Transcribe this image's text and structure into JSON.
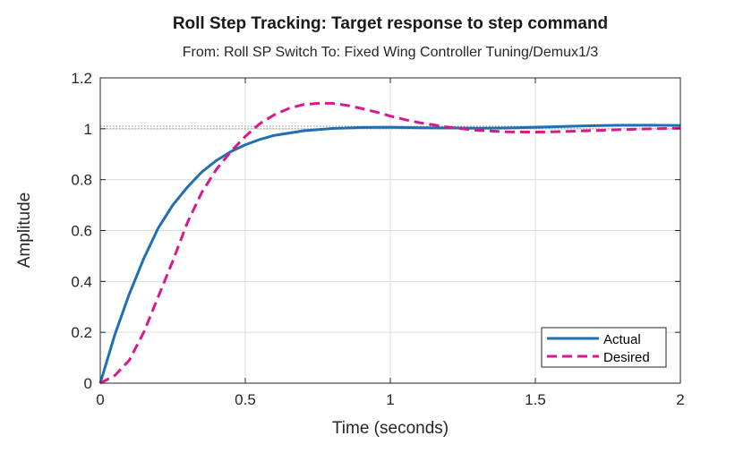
{
  "chart_data": {
    "type": "line",
    "title": "Roll Step Tracking: Target response to step command",
    "subtitle": "From: Roll SP Switch  To: Fixed Wing Controller Tuning/Demux1/3",
    "xlabel": "Time (seconds)",
    "ylabel": "Amplitude",
    "xlim": [
      0,
      2
    ],
    "ylim": [
      0,
      1.2
    ],
    "xticks": [
      0,
      0.5,
      1,
      1.5,
      2
    ],
    "xtick_labels": [
      "0",
      "0.5",
      "1",
      "1.5",
      "2"
    ],
    "yticks": [
      0,
      0.2,
      0.4,
      0.6,
      0.8,
      1,
      1.2
    ],
    "ytick_labels": [
      "0",
      "0.2",
      "0.4",
      "0.6",
      "0.8",
      "1",
      "1.2"
    ],
    "grid": true,
    "legend_position": "bottom-right",
    "reference_lines": [
      1.0,
      1.01
    ],
    "series": [
      {
        "name": "Actual",
        "color": "#1f6fb5",
        "style": "solid",
        "x": [
          0,
          0.05,
          0.1,
          0.15,
          0.2,
          0.25,
          0.3,
          0.35,
          0.4,
          0.45,
          0.5,
          0.55,
          0.6,
          0.7,
          0.8,
          0.9,
          1.0,
          1.1,
          1.2,
          1.3,
          1.4,
          1.5,
          1.6,
          1.7,
          1.8,
          1.9,
          2.0
        ],
        "y": [
          0,
          0.19,
          0.35,
          0.49,
          0.61,
          0.7,
          0.77,
          0.83,
          0.875,
          0.91,
          0.937,
          0.958,
          0.974,
          0.992,
          1.001,
          1.005,
          1.006,
          1.004,
          1.003,
          1.002,
          1.003,
          1.006,
          1.009,
          1.012,
          1.014,
          1.014,
          1.013
        ]
      },
      {
        "name": "Desired",
        "color": "#d61a8c",
        "style": "dashed",
        "x": [
          0,
          0.05,
          0.1,
          0.15,
          0.2,
          0.25,
          0.3,
          0.35,
          0.4,
          0.45,
          0.5,
          0.55,
          0.6,
          0.65,
          0.7,
          0.75,
          0.8,
          0.85,
          0.9,
          0.95,
          1.0,
          1.05,
          1.1,
          1.2,
          1.3,
          1.4,
          1.5,
          1.6,
          1.7,
          1.8,
          1.9,
          2.0
        ],
        "y": [
          0,
          0.03,
          0.09,
          0.2,
          0.34,
          0.48,
          0.63,
          0.75,
          0.84,
          0.91,
          0.97,
          1.02,
          1.055,
          1.08,
          1.095,
          1.1,
          1.1,
          1.092,
          1.08,
          1.066,
          1.05,
          1.036,
          1.024,
          1.006,
          0.994,
          0.988,
          0.987,
          0.989,
          0.993,
          0.997,
          1.0,
          1.002
        ]
      }
    ]
  }
}
